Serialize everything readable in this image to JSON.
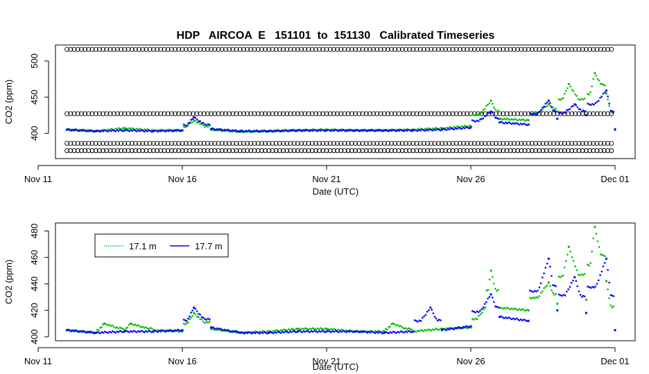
{
  "title": "HDP   AIRCOA  E   151101  to  151130   Calibrated Timeseries",
  "chart_data": [
    {
      "type": "scatter",
      "xlabel": "Date (UTC)",
      "ylabel": "CO2 (ppm)",
      "x_ticks": [
        "Nov 11",
        "Nov 16",
        "Nov 21",
        "Nov 26",
        "Dec 01"
      ],
      "y_ticks": [
        400,
        450,
        500
      ],
      "ylim": [
        365,
        522
      ],
      "x_range": [
        "2015-11-11",
        "2015-12-01"
      ],
      "calibration_levels": {
        "color": "#000000",
        "marker": "open-circle",
        "start": "2015-11-12",
        "end": "2015-12-01",
        "values": [
          516,
          427,
          386,
          376
        ]
      },
      "series": [
        {
          "color": "#00c000",
          "points": [
            [
              "2015-11-12",
              405
            ],
            [
              "2015-11-13",
              403
            ],
            [
              "2015-11-14",
              407
            ],
            [
              "2015-11-15",
              404
            ],
            [
              "2015-11-16",
              404
            ],
            [
              "2015-11-16.4",
              418
            ],
            [
              "2015-11-17",
              405
            ],
            [
              "2015-11-18",
              402
            ],
            [
              "2015-11-19",
              403
            ],
            [
              "2015-11-20",
              404
            ],
            [
              "2015-11-21",
              405
            ],
            [
              "2015-11-22",
              404
            ],
            [
              "2015-11-23",
              404
            ],
            [
              "2015-11-24",
              405
            ],
            [
              "2015-11-25",
              407
            ],
            [
              "2015-11-26",
              410
            ],
            [
              "2015-11-26.7",
              445
            ],
            [
              "2015-11-27",
              420
            ],
            [
              "2015-11-28",
              418
            ],
            [
              "2015-11-28.7",
              440
            ],
            [
              "2015-11-29",
              430
            ],
            [
              "2015-11-29.4",
              468
            ],
            [
              "2015-11-30",
              430
            ],
            [
              "2015-11-30.3",
              483
            ],
            [
              "2015-11-30.7",
              455
            ],
            [
              "2015-12-01",
              406
            ]
          ]
        },
        {
          "color": "#0000ff",
          "points": [
            [
              "2015-11-12",
              405
            ],
            [
              "2015-11-13",
              403
            ],
            [
              "2015-11-14",
              404
            ],
            [
              "2015-11-15",
              403
            ],
            [
              "2015-11-16",
              404
            ],
            [
              "2015-11-16.4",
              422
            ],
            [
              "2015-11-17",
              406
            ],
            [
              "2015-11-18",
              403
            ],
            [
              "2015-11-19",
              403
            ],
            [
              "2015-11-20",
              404
            ],
            [
              "2015-11-21",
              404
            ],
            [
              "2015-11-22",
              404
            ],
            [
              "2015-11-23",
              404
            ],
            [
              "2015-11-24",
              404
            ],
            [
              "2015-11-25",
              405
            ],
            [
              "2015-11-26",
              408
            ],
            [
              "2015-11-26.7",
              430
            ],
            [
              "2015-11-27",
              415
            ],
            [
              "2015-11-28",
              412
            ],
            [
              "2015-11-28.7",
              445
            ],
            [
              "2015-11-29",
              420
            ],
            [
              "2015-11-29.6",
              440
            ],
            [
              "2015-11-30",
              425
            ],
            [
              "2015-11-30.7",
              459
            ],
            [
              "2015-12-01",
              405
            ]
          ]
        }
      ]
    },
    {
      "type": "scatter",
      "xlabel": "Date (UTC)",
      "ylabel": "CO2 (ppm)",
      "x_ticks": [
        "Nov 11",
        "Nov 16",
        "Nov 21",
        "Nov 26",
        "Dec 01"
      ],
      "y_ticks": [
        400,
        420,
        440,
        460,
        480
      ],
      "ylim": [
        397,
        486
      ],
      "x_range": [
        "2015-11-11",
        "2015-12-01"
      ],
      "legend": {
        "placement": "top-left",
        "entries": [
          {
            "label": "17.1 m",
            "color": "#00c000",
            "style": "dotted"
          },
          {
            "label": "17.7 m",
            "color": "#0000ff",
            "style": "solid"
          }
        ]
      },
      "series": [
        {
          "name": "17.1 m",
          "color": "#00c000",
          "points": [
            [
              "2015-11-12",
              405
            ],
            [
              "2015-11-13",
              403
            ],
            [
              "2015-11-13.3",
              410
            ],
            [
              "2015-11-14",
              405
            ],
            [
              "2015-11-14.2",
              410
            ],
            [
              "2015-11-15",
              405
            ],
            [
              "2015-11-16",
              404
            ],
            [
              "2015-11-16.4",
              418
            ],
            [
              "2015-11-17",
              406
            ],
            [
              "2015-11-18",
              403
            ],
            [
              "2015-11-19",
              404
            ],
            [
              "2015-11-20",
              406
            ],
            [
              "2015-11-21",
              406
            ],
            [
              "2015-11-22",
              404
            ],
            [
              "2015-11-23",
              404
            ],
            [
              "2015-11-23.3",
              410
            ],
            [
              "2015-11-24",
              404
            ],
            [
              "2015-11-25",
              406
            ],
            [
              "2015-11-26",
              407
            ],
            [
              "2015-11-26.5",
              422
            ],
            [
              "2015-11-26.7",
              450
            ],
            [
              "2015-11-27",
              422
            ],
            [
              "2015-11-28",
              420
            ],
            [
              "2015-11-28.7",
              441
            ],
            [
              "2015-11-29",
              425
            ],
            [
              "2015-11-29.4",
              468
            ],
            [
              "2015-11-30",
              428
            ],
            [
              "2015-11-30.3",
              483
            ],
            [
              "2015-11-30.7",
              442
            ],
            [
              "2015-12-01",
              405
            ]
          ]
        },
        {
          "name": "17.7 m",
          "color": "#0000ff",
          "points": [
            [
              "2015-11-12",
              405
            ],
            [
              "2015-11-13",
              403
            ],
            [
              "2015-11-14",
              404
            ],
            [
              "2015-11-15",
              404
            ],
            [
              "2015-11-16",
              405
            ],
            [
              "2015-11-16.4",
              422
            ],
            [
              "2015-11-17",
              407
            ],
            [
              "2015-11-18",
              403
            ],
            [
              "2015-11-19",
              403
            ],
            [
              "2015-11-20",
              404
            ],
            [
              "2015-11-21",
              404
            ],
            [
              "2015-11-22",
              404
            ],
            [
              "2015-11-23",
              403
            ],
            [
              "2015-11-24",
              404
            ],
            [
              "2015-11-24.6",
              422
            ],
            [
              "2015-11-25",
              405
            ],
            [
              "2015-11-26",
              408
            ],
            [
              "2015-11-26.7",
              432
            ],
            [
              "2015-11-27",
              415
            ],
            [
              "2015-11-28",
              412
            ],
            [
              "2015-11-28.7",
              459
            ],
            [
              "2015-11-29",
              420
            ],
            [
              "2015-11-29.6",
              445
            ],
            [
              "2015-11-30",
              418
            ],
            [
              "2015-11-30.7",
              459
            ],
            [
              "2015-12-01",
              405
            ]
          ]
        }
      ]
    }
  ]
}
